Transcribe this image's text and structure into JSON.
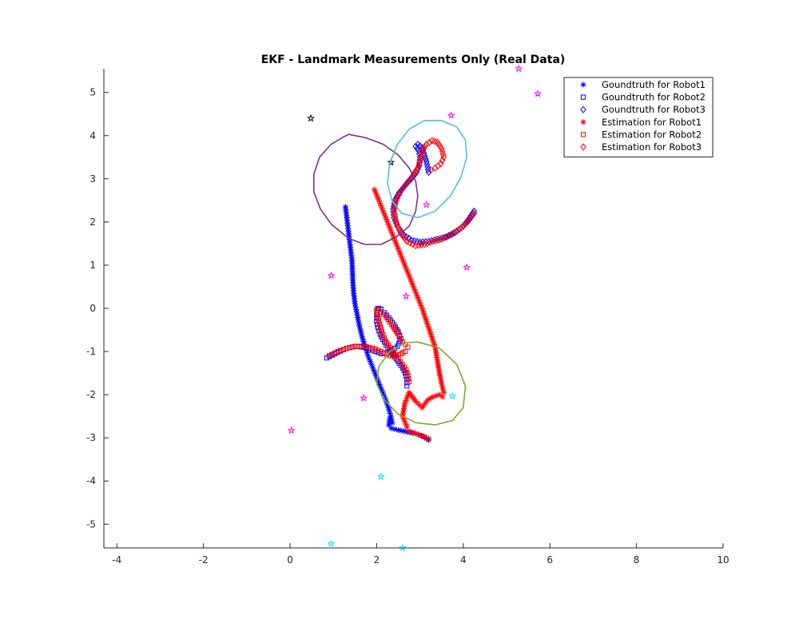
{
  "chart_data": {
    "type": "scatter",
    "title": "EKF - Landmark Measurements Only (Real Data)",
    "xlabel": "",
    "ylabel": "",
    "xlim": [
      -4.3,
      10
    ],
    "ylim": [
      -5.55,
      5.55
    ],
    "xticks": [
      -4,
      -2,
      0,
      2,
      4,
      6,
      8,
      10
    ],
    "yticks": [
      -5,
      -4,
      -3,
      -2,
      -1,
      0,
      1,
      2,
      3,
      4,
      5
    ],
    "grid": false,
    "legend_position": "top-right",
    "series": [
      {
        "name": "Goundtruth for Robot1",
        "color": "#0000ff",
        "marker": "asterisk",
        "x": [
          1.28,
          1.31,
          1.34,
          1.37,
          1.4,
          1.43,
          1.44,
          1.45,
          1.47,
          1.5,
          1.55,
          1.6,
          1.66,
          1.73,
          1.8,
          1.88,
          1.96,
          2.04,
          2.12,
          2.2,
          2.27,
          2.33,
          2.36,
          2.3,
          2.28,
          2.34,
          2.5,
          2.7,
          2.9,
          3.1,
          3.2
        ],
        "y": [
          2.35,
          2.1,
          1.85,
          1.6,
          1.35,
          1.1,
          0.85,
          0.6,
          0.35,
          0.1,
          -0.15,
          -0.4,
          -0.65,
          -0.88,
          -1.1,
          -1.3,
          -1.5,
          -1.7,
          -1.9,
          -2.1,
          -2.3,
          -2.5,
          -2.65,
          -2.55,
          -2.7,
          -2.78,
          -2.82,
          -2.86,
          -2.9,
          -2.98,
          -3.05
        ]
      },
      {
        "name": "Goundtruth for Robot2",
        "color": "#0000ff",
        "marker": "square",
        "x": [
          2.7,
          2.7,
          2.66,
          2.6,
          2.52,
          2.45,
          2.38,
          2.3,
          2.22,
          2.14,
          2.08,
          2.03,
          2.0,
          2.0,
          2.02,
          2.05,
          2.1,
          2.18,
          2.28,
          2.4,
          2.5,
          2.56,
          2.48,
          2.3,
          2.1,
          1.9,
          1.7,
          1.5,
          1.3,
          1.1,
          0.85
        ],
        "y": [
          -1.8,
          -1.65,
          -1.5,
          -1.38,
          -1.27,
          -1.17,
          -1.07,
          -0.97,
          -0.85,
          -0.72,
          -0.6,
          -0.45,
          -0.3,
          -0.15,
          -0.02,
          0.0,
          -0.02,
          -0.1,
          -0.22,
          -0.38,
          -0.55,
          -0.7,
          -0.88,
          -1.02,
          -1.05,
          -0.97,
          -0.9,
          -0.88,
          -0.93,
          -1.02,
          -1.15
        ]
      },
      {
        "name": "Goundtruth for Robot3",
        "color": "#0000ff",
        "marker": "diamond",
        "x": [
          4.25,
          4.15,
          4.0,
          3.8,
          3.6,
          3.4,
          3.2,
          3.0,
          2.8,
          2.62,
          2.48,
          2.4,
          2.38,
          2.42,
          2.52,
          2.66,
          2.8,
          2.92,
          2.98,
          3.0,
          2.97,
          2.9,
          2.95,
          3.05,
          3.15,
          3.2
        ],
        "y": [
          2.25,
          2.1,
          1.9,
          1.75,
          1.65,
          1.6,
          1.55,
          1.53,
          1.58,
          1.7,
          1.9,
          2.1,
          2.3,
          2.5,
          2.68,
          2.85,
          3.0,
          3.15,
          3.3,
          3.5,
          3.65,
          3.75,
          3.8,
          3.72,
          3.4,
          3.15
        ]
      },
      {
        "name": "Estimation for Robot1",
        "color": "#ff0000",
        "marker": "asterisk",
        "x": [
          1.95,
          2.05,
          2.15,
          2.25,
          2.35,
          2.45,
          2.55,
          2.65,
          2.75,
          2.85,
          2.95,
          3.05,
          3.15,
          3.25,
          3.35,
          3.4,
          3.45,
          3.5,
          3.55,
          3.52,
          3.45,
          3.3,
          3.18,
          3.05,
          2.9,
          2.75,
          2.65,
          2.6,
          2.7,
          2.75,
          2.9,
          3.05,
          3.2
        ],
        "y": [
          2.75,
          2.5,
          2.25,
          2.0,
          1.75,
          1.5,
          1.25,
          1.0,
          0.75,
          0.5,
          0.25,
          0.0,
          -0.3,
          -0.6,
          -0.9,
          -1.2,
          -1.5,
          -1.75,
          -1.95,
          -2.05,
          -2.0,
          -2.05,
          -2.12,
          -2.3,
          -2.15,
          -1.95,
          -2.2,
          -2.5,
          -2.75,
          -2.85,
          -2.9,
          -2.95,
          -3.02
        ]
      },
      {
        "name": "Estimation for Robot2",
        "color": "#ff0000",
        "marker": "square",
        "x": [
          2.75,
          2.72,
          2.68,
          2.6,
          2.5,
          2.4,
          2.3,
          2.2,
          2.12,
          2.05,
          2.0,
          2.02,
          2.1,
          2.22,
          2.35,
          2.48,
          2.6,
          2.72,
          2.66,
          2.5,
          2.3,
          2.1,
          1.9,
          1.7,
          1.5,
          1.3,
          1.1,
          0.9
        ],
        "y": [
          -1.7,
          -1.55,
          -1.42,
          -1.3,
          -1.18,
          -1.05,
          -0.9,
          -0.75,
          -0.55,
          -0.3,
          -0.05,
          0.0,
          -0.08,
          -0.2,
          -0.38,
          -0.58,
          -0.78,
          -0.9,
          -1.0,
          -1.08,
          -1.1,
          -1.0,
          -0.92,
          -0.88,
          -0.88,
          -0.93,
          -1.0,
          -1.1
        ]
      },
      {
        "name": "Estimation for Robot3",
        "color": "#ff0000",
        "marker": "diamond",
        "x": [
          4.25,
          4.1,
          3.9,
          3.7,
          3.5,
          3.3,
          3.1,
          2.9,
          2.7,
          2.55,
          2.45,
          2.4,
          2.45,
          2.55,
          2.68,
          2.82,
          2.95,
          3.02,
          3.05,
          3.15,
          3.28,
          3.4,
          3.5,
          3.55,
          3.48,
          3.35,
          3.25
        ],
        "y": [
          2.2,
          2.0,
          1.82,
          1.7,
          1.6,
          1.55,
          1.48,
          1.45,
          1.55,
          1.75,
          2.0,
          2.25,
          2.5,
          2.7,
          2.88,
          3.05,
          3.25,
          3.45,
          3.65,
          3.8,
          3.88,
          3.85,
          3.7,
          3.5,
          3.35,
          3.25,
          3.2
        ]
      },
      {
        "name": "",
        "color": "#ff00ff",
        "marker": "pentagram",
        "x": [
          5.28,
          5.72,
          3.72,
          3.15,
          0.95,
          4.08,
          2.68,
          1.7,
          0.03
        ],
        "y": [
          5.55,
          4.97,
          4.47,
          2.4,
          0.76,
          0.95,
          0.28,
          -2.08,
          -2.83
        ]
      },
      {
        "name": "",
        "color": "#000000",
        "marker": "pentagram",
        "x": [
          0.48,
          2.33
        ],
        "y": [
          4.4,
          3.38
        ]
      },
      {
        "name": "",
        "color": "#00e5ee",
        "marker": "pentagram",
        "x": [
          3.75,
          2.1,
          0.95,
          2.6
        ],
        "y": [
          -2.03,
          -3.9,
          -5.45,
          -5.55
        ]
      },
      {
        "name": "",
        "color": "#7e2f8e",
        "marker": "line",
        "closed": true,
        "x": [
          1.35,
          1.75,
          2.15,
          2.5,
          2.75,
          2.9,
          2.95,
          2.9,
          2.75,
          2.45,
          2.1,
          1.72,
          1.35,
          0.95,
          0.7,
          0.55,
          0.55,
          0.68,
          0.95,
          1.2,
          1.35
        ],
        "y": [
          4.03,
          3.95,
          3.8,
          3.55,
          3.25,
          2.95,
          2.6,
          2.25,
          1.9,
          1.65,
          1.48,
          1.48,
          1.62,
          1.95,
          2.3,
          2.7,
          3.1,
          3.5,
          3.8,
          3.95,
          4.03
        ]
      },
      {
        "name": "",
        "color": "#4dbeee",
        "marker": "line",
        "closed": true,
        "x": [
          3.5,
          3.85,
          4.05,
          4.08,
          3.95,
          3.7,
          3.35,
          2.95,
          2.58,
          2.35,
          2.25,
          2.3,
          2.48,
          2.75,
          3.1,
          3.5
        ],
        "y": [
          4.35,
          4.2,
          3.9,
          3.5,
          3.05,
          2.6,
          2.25,
          2.1,
          2.2,
          2.5,
          2.9,
          3.35,
          3.8,
          4.15,
          4.35,
          4.35
        ]
      },
      {
        "name": "",
        "color": "#77ac30",
        "marker": "line",
        "closed": true,
        "x": [
          2.95,
          3.45,
          3.85,
          4.05,
          4.0,
          3.75,
          3.35,
          2.9,
          2.5,
          2.2,
          2.0,
          2.05,
          2.3,
          2.65,
          2.95
        ],
        "y": [
          -0.78,
          -0.92,
          -1.3,
          -1.8,
          -2.3,
          -2.6,
          -2.7,
          -2.65,
          -2.45,
          -2.15,
          -1.75,
          -1.35,
          -1.0,
          -0.8,
          -0.78
        ]
      }
    ]
  }
}
